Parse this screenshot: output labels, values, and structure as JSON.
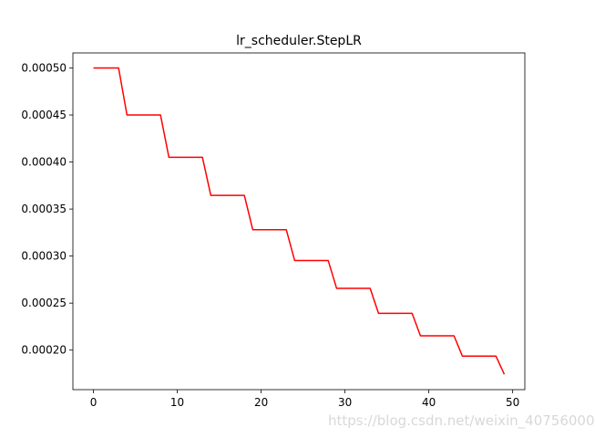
{
  "chart_data": {
    "type": "line",
    "title": "lr_scheduler.StepLR",
    "xlabel": "",
    "ylabel": "",
    "xlim": [
      -2.45,
      51.45
    ],
    "ylim": [
      0.000158,
      0.000516
    ],
    "x_ticks": [
      0,
      10,
      20,
      30,
      40,
      50
    ],
    "x_tick_labels": [
      "0",
      "10",
      "20",
      "30",
      "40",
      "50"
    ],
    "y_ticks": [
      0.0002,
      0.00025,
      0.0003,
      0.00035,
      0.0004,
      0.00045,
      0.0005
    ],
    "y_tick_labels": [
      "0.00020",
      "0.00025",
      "0.00030",
      "0.00035",
      "0.00040",
      "0.00045",
      "0.00050"
    ],
    "grid": false,
    "series": [
      {
        "color": "#ff0000",
        "x": [
          0,
          1,
          2,
          3,
          4,
          5,
          6,
          7,
          8,
          9,
          10,
          11,
          12,
          13,
          14,
          15,
          16,
          17,
          18,
          19,
          20,
          21,
          22,
          23,
          24,
          25,
          26,
          27,
          28,
          29,
          30,
          31,
          32,
          33,
          34,
          35,
          36,
          37,
          38,
          39,
          40,
          41,
          42,
          43,
          44,
          45,
          46,
          47,
          48,
          49
        ],
        "values": [
          0.0005,
          0.0005,
          0.0005,
          0.0005,
          0.00045,
          0.00045,
          0.00045,
          0.00045,
          0.00045,
          0.000405,
          0.000405,
          0.000405,
          0.000405,
          0.000405,
          0.0003645,
          0.0003645,
          0.0003645,
          0.0003645,
          0.0003645,
          0.00032805,
          0.00032805,
          0.00032805,
          0.00032805,
          0.00032805,
          0.000295245,
          0.000295245,
          0.000295245,
          0.000295245,
          0.000295245,
          0.0002657205,
          0.0002657205,
          0.0002657205,
          0.0002657205,
          0.0002657205,
          0.00023914845,
          0.00023914845,
          0.00023914845,
          0.00023914845,
          0.00023914845,
          0.000215233605,
          0.000215233605,
          0.000215233605,
          0.000215233605,
          0.000215233605,
          0.0001937102445,
          0.0001937102445,
          0.0001937102445,
          0.0001937102445,
          0.0001937102445,
          0.00017433922
        ]
      }
    ]
  },
  "watermark": "https://blog.csdn.net/weixin_40756000"
}
